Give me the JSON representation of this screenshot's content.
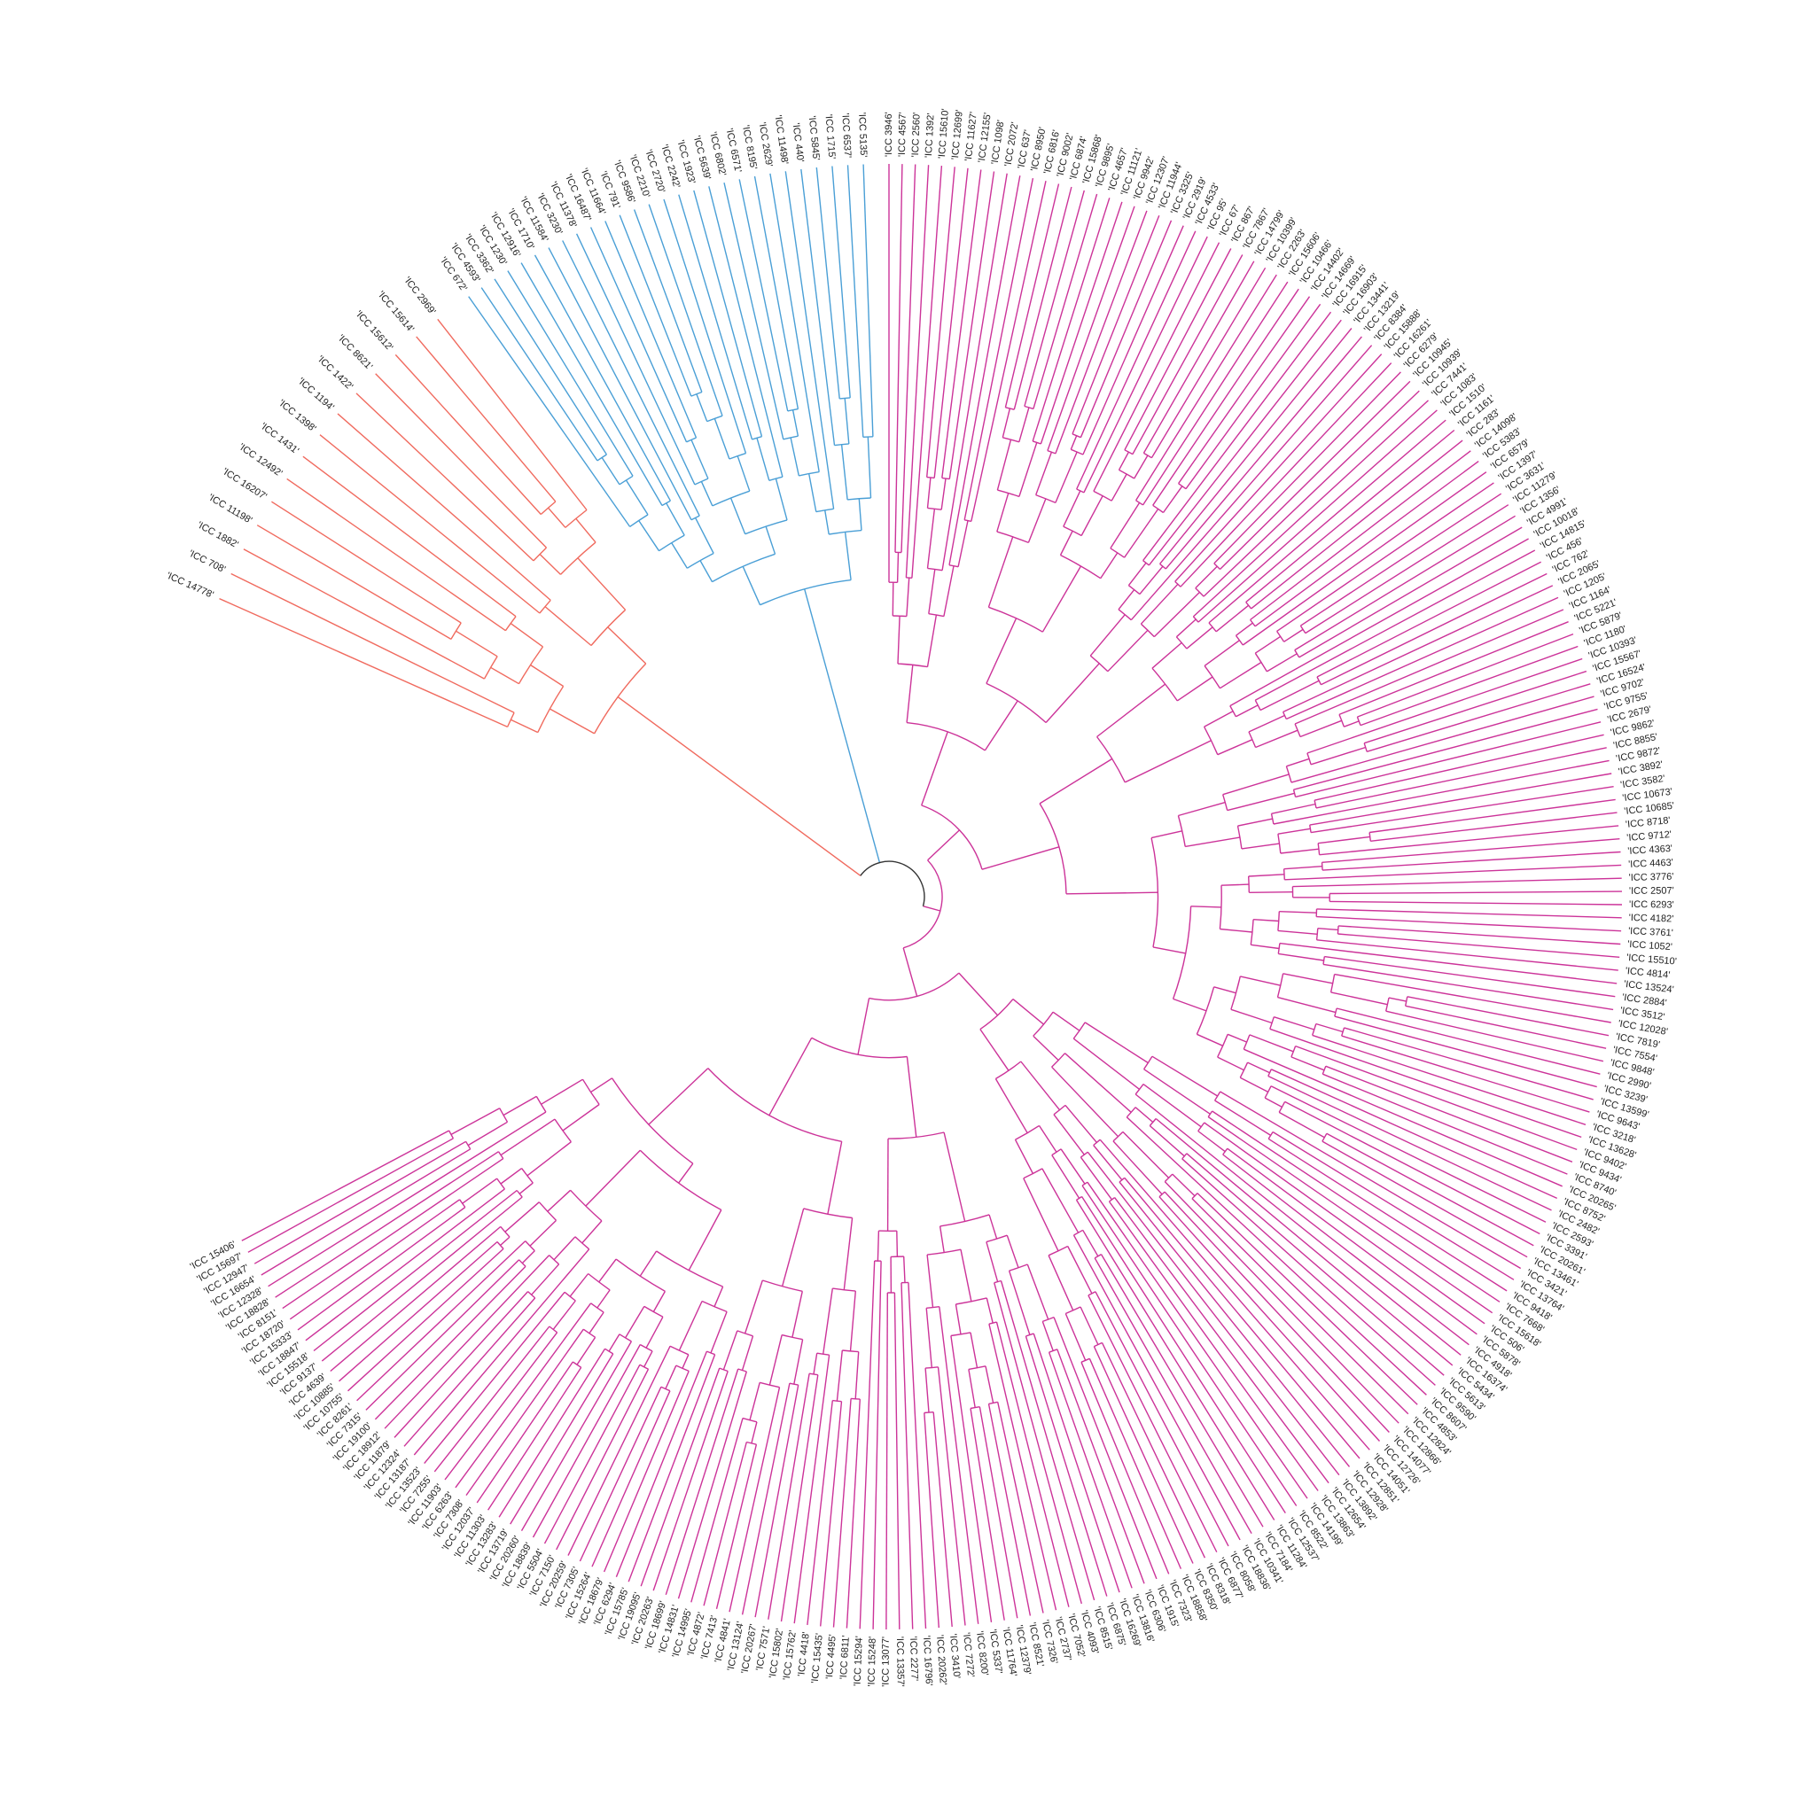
{
  "tree": {
    "colors": {
      "red": "#f06a5e",
      "blue": "#4a9fd6",
      "magenta": "#cc3399",
      "root": "#333333"
    },
    "clades": [
      {
        "name": "red",
        "color": "#f06a5e",
        "labels": [
          "'ICC 14778'",
          "'ICC 708'",
          "'ICC 1882'",
          "'ICC 11198'",
          "'ICC 16207'",
          "'ICC 12492'",
          "'ICC 1431'",
          "'ICC 1398'",
          "'ICC 1194'",
          "'ICC 1422'",
          "'ICC 8621'",
          "'ICC 15612'",
          "'ICC 15614'",
          "'ICC 2969'"
        ]
      },
      {
        "name": "blue",
        "color": "#4a9fd6",
        "labels": [
          "'ICC 672'",
          "'ICC 4593'",
          "'ICC 3362'",
          "'ICC 1230'",
          "'ICC 12916'",
          "'ICC 1710'",
          "'ICC 11584'",
          "'ICC 3230'",
          "'ICC 11378'",
          "'ICC 16487'",
          "'ICC 11664'",
          "'ICC 791'",
          "'ICC 9586'",
          "'ICC 2210'",
          "'ICC 2720'",
          "'ICC 2242'",
          "'ICC 1923'",
          "'ICC 5639'",
          "'ICC 6802'",
          "'ICC 6571'",
          "'ICC 8195'",
          "'ICC 2629'",
          "'ICC 11498'",
          "'ICC 440'",
          "'ICC 5845'",
          "'ICC 1715'",
          "'ICC 6537'",
          "'ICC 5135'"
        ]
      },
      {
        "name": "magenta",
        "color": "#cc3399",
        "labels": [
          "'ICC 3946'",
          "'ICC 4567'",
          "'ICC 2560'",
          "'ICC 1392'",
          "'ICC 15610'",
          "'ICC 12699'",
          "'ICC 11627'",
          "'ICC 12155'",
          "'ICC 1098'",
          "'ICC 2072'",
          "'ICC 637'",
          "'ICC 8950'",
          "'ICC 6816'",
          "'ICC 9002'",
          "'ICC 6874'",
          "'ICC 15868'",
          "'ICC 9895'",
          "'ICC 4657'",
          "'ICC 11121'",
          "'ICC 9942'",
          "'ICC 12307'",
          "'ICC 11944'",
          "'ICC 3325'",
          "'ICC 2919'",
          "'ICC 4533'",
          "'ICC 95'",
          "'ICC 67'",
          "'ICC 867'",
          "'ICC 7867'",
          "'ICC 14799'",
          "'ICC 10399'",
          "'ICC 2263'",
          "'ICC 15606'",
          "'ICC 10466'",
          "'ICC 14402'",
          "'ICC 14669'",
          "'ICC 16915'",
          "'ICC 16903'",
          "'ICC 13441'",
          "'ICC 13219'",
          "'ICC 8384'",
          "'ICC 15888'",
          "'ICC 16261'",
          "'ICC 6279'",
          "'ICC 10945'",
          "'ICC 10939'",
          "'ICC 7441'",
          "'ICC 1083'",
          "'ICC 1510'",
          "'ICC 1161'",
          "'ICC 283'",
          "'ICC 14098'",
          "'ICC 5383'",
          "'ICC 6579'",
          "'ICC 1397'",
          "'ICC 3631'",
          "'ICC 11279'",
          "'ICC 1356'",
          "'ICC 4991'",
          "'ICC 10018'",
          "'ICC 14815'",
          "'ICC 456'",
          "'ICC 762'",
          "'ICC 2065'",
          "'ICC 1205'",
          "'ICC 1164'",
          "'ICC 5221'",
          "'ICC 5879'",
          "'ICC 1180'",
          "'ICC 10393'",
          "'ICC 15567'",
          "'ICC 16524'",
          "'ICC 9702'",
          "'ICC 9755'",
          "'ICC 2679'",
          "'ICC 9862'",
          "'ICC 8855'",
          "'ICC 9872'",
          "'ICC 3892'",
          "'ICC 3582'",
          "'ICC 10673'",
          "'ICC 10685'",
          "'ICC 8718'",
          "'ICC 9712'",
          "'ICC 4363'",
          "'ICC 4463'",
          "'ICC 3776'",
          "'ICC 2507'",
          "'ICC 6293'",
          "'ICC 4182'",
          "'ICC 3761'",
          "'ICC 1052'",
          "'ICC 15510'",
          "'ICC 4814'",
          "'ICC 13524'",
          "'ICC 2884'",
          "'ICC 3512'",
          "'ICC 12028'",
          "'ICC 7819'",
          "'ICC 7554'",
          "'ICC 9848'",
          "'ICC 2990'",
          "'ICC 3239'",
          "'ICC 13599'",
          "'ICC 9643'",
          "'ICC 3218'",
          "'ICC 13628'",
          "'ICC 9402'",
          "'ICC 9434'",
          "'ICC 8740'",
          "'ICC 20265'",
          "'ICC 8752'",
          "'ICC 2482'",
          "'ICC 2593'",
          "'ICC 3391'",
          "'ICC 20261'",
          "'ICC 13461'",
          "'ICC 3421'",
          "'ICC 13764'",
          "'ICC 9418'",
          "'ICC 7668'",
          "'ICC 15618'",
          "'ICC 506'",
          "'ICC 5878'",
          "'ICC 4918'",
          "'ICC 16374'",
          "'ICC 5434'",
          "'ICC 5613'",
          "'ICC 9590'",
          "'ICC 8607'",
          "'ICC 4853'",
          "'ICC 12824'",
          "'ICC 12866'",
          "'ICC 14077'",
          "'ICC 12726'",
          "'ICC 14051'",
          "'ICC 12851'",
          "'ICC 12928'",
          "'ICC 13892'",
          "'ICC 12654'",
          "'ICC 13863'",
          "'ICC 14199'",
          "'ICC 8522'",
          "'ICC 12537'",
          "'ICC 11284'",
          "'ICC 7184'",
          "'ICC 10341'",
          "'ICC 18836'",
          "'ICC 8058'",
          "'ICC 6877'",
          "'ICC 8318'",
          "'ICC 8350'",
          "'ICC 18858'",
          "'ICC 7323'",
          "'ICC 1915'",
          "'ICC 6306'",
          "'ICC 13816'",
          "'ICC 16269'",
          "'ICC 6875'",
          "'ICC 8515'",
          "'ICC 4093'",
          "'ICC 7052'",
          "'ICC 2737'",
          "'ICC 7326'",
          "'ICC 8521'",
          "'ICC 12379'",
          "'ICC 11764'",
          "'ICC 5337'",
          "'ICC 8200'",
          "'ICC 7272'",
          "'ICC 3410'",
          "'ICC 20262'",
          "'ICC 16796'",
          "'ICC 2277'",
          "'ICC 13357'",
          "'ICC 13077'",
          "'ICC 15248'",
          "'ICC 15294'",
          "'ICC 6811'",
          "'ICC 4495'",
          "'ICC 15435'",
          "'ICC 4418'",
          "'ICC 15762'",
          "'ICC 15802'",
          "'ICC 7571'",
          "'ICC 20267'",
          "'ICC 13124'",
          "'ICC 4841'",
          "'ICC 7413'",
          "'ICC 4872'",
          "'ICC 14995'",
          "'ICC 14831'",
          "'ICC 18699'",
          "'ICC 20263'",
          "'ICC 19095'",
          "'ICC 15785'",
          "'ICC 6294'",
          "'ICC 18679'",
          "'ICC 15264'",
          "'ICC 7305'",
          "'ICC 20259'",
          "'ICC 7150'",
          "'ICC 5504'",
          "'ICC 18839'",
          "'ICC 20260'",
          "'ICC 13719'",
          "'ICC 13283'",
          "'ICC 11303'",
          "'ICC 12037'",
          "'ICC 7308'",
          "'ICC 6263'",
          "'ICC 11903'",
          "'ICC 7255'",
          "'ICC 13523'",
          "'ICC 13187'",
          "'ICC 12324'",
          "'ICC 11879'",
          "'ICC 18912'",
          "'ICC 19100'",
          "'ICC 7315'",
          "'ICC 8261'",
          "'ICC 10755'",
          "'ICC 10885'",
          "'ICC 4639'",
          "'ICC 9137'",
          "'ICC 15518'",
          "'ICC 18847'",
          "'ICC 15333'",
          "'ICC 18720'",
          "'ICC 8151'",
          "'ICC 18828'",
          "'ICC 12328'",
          "'ICC 16654'",
          "'ICC 12947'",
          "'ICC 15697'",
          "'ICC 15406'"
        ]
      }
    ]
  }
}
